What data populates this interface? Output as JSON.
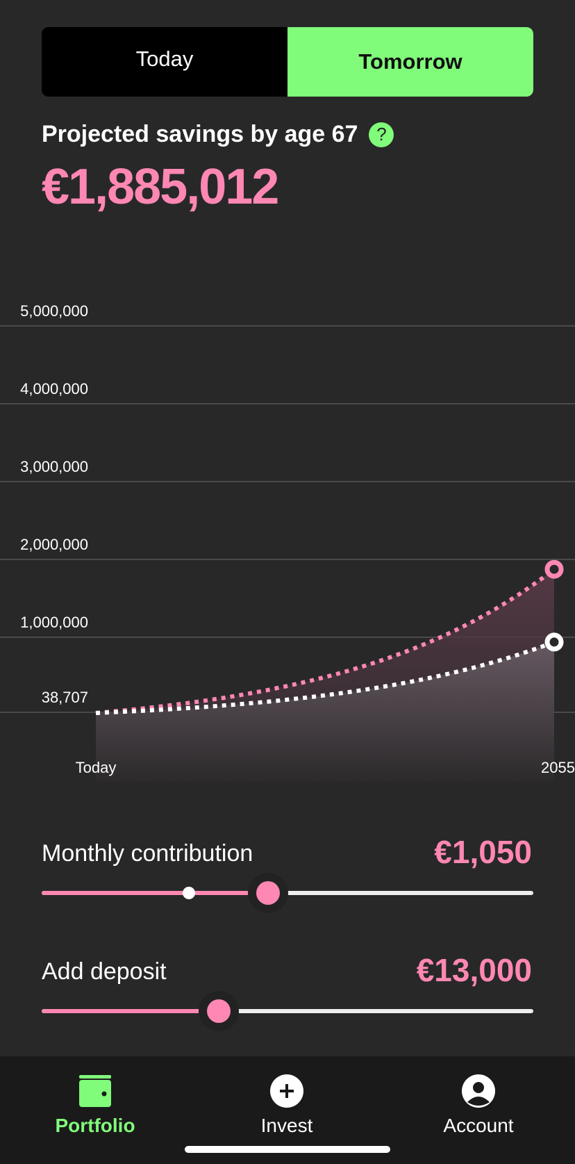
{
  "toggle": {
    "today_label": "Today",
    "tomorrow_label": "Tomorrow",
    "selected": "Tomorrow"
  },
  "header": {
    "title": "Projected savings by age 67",
    "help_icon": "question-circle-icon",
    "amount": "€1,885,012"
  },
  "colors": {
    "background": "#282828",
    "accent_green": "#80fb7a",
    "accent_pink": "#fe87b3",
    "nav_background": "#1a1a1a"
  },
  "chart_data": {
    "type": "line",
    "x_labels": [
      "Today",
      "2055"
    ],
    "y_tick_labels": [
      "5,000,000",
      "4,000,000",
      "3,000,000",
      "2,000,000",
      "1,000,000",
      "38,707"
    ],
    "y_ticks": [
      5000000,
      4000000,
      3000000,
      2000000,
      1000000,
      38707
    ],
    "ylim": [
      0,
      5000000
    ],
    "grid": true,
    "series": [
      {
        "color": "#fe87b3",
        "style": "dotted",
        "start": 38707,
        "end": 1885012
      },
      {
        "color": "#ffffff",
        "style": "dotted",
        "start": 38707,
        "end": 950000
      }
    ]
  },
  "sliders": [
    {
      "label": "Monthly contribution",
      "value": "€1,050",
      "fraction": 0.46,
      "marker_fraction": 0.3
    },
    {
      "label": "Add deposit",
      "value": "€13,000",
      "fraction": 0.36
    }
  ],
  "nav": [
    {
      "label": "Portfolio",
      "icon": "wallet-icon",
      "active": true
    },
    {
      "label": "Invest",
      "icon": "plus-circle-icon",
      "active": false
    },
    {
      "label": "Account",
      "icon": "user-circle-icon",
      "active": false
    }
  ]
}
